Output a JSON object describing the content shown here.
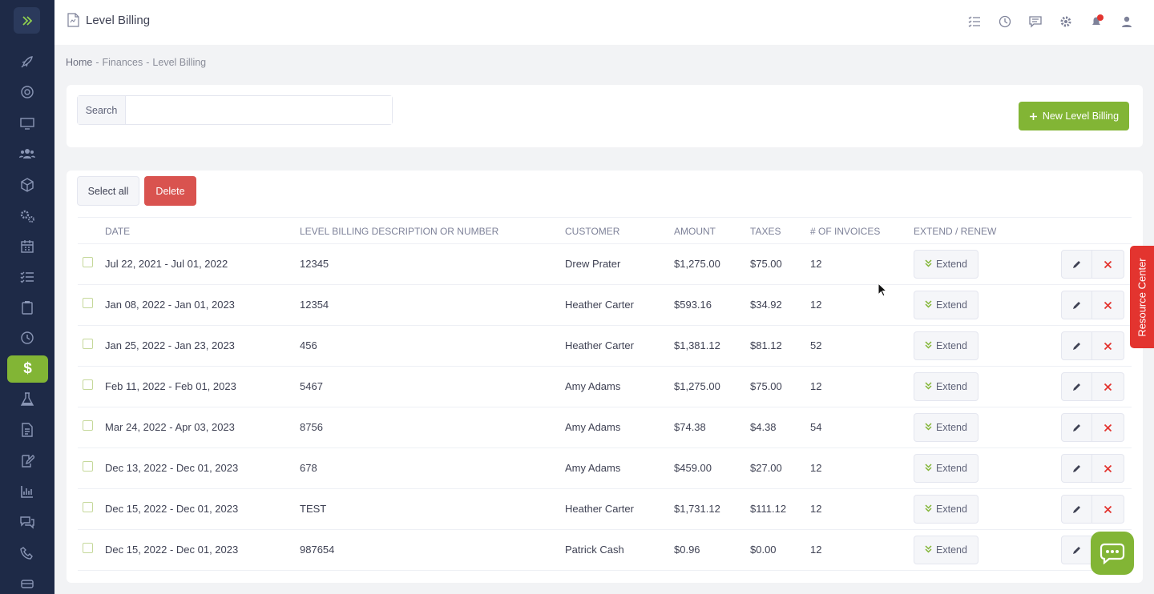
{
  "header": {
    "title": "Level Billing"
  },
  "breadcrumb": {
    "home": "Home",
    "sep1": "-",
    "finances": "Finances",
    "sep2": "-",
    "current": "Level Billing"
  },
  "search": {
    "label": "Search",
    "value": "",
    "placeholder": ""
  },
  "actions": {
    "new_button": "New Level Billing",
    "select_all": "Select all",
    "delete": "Delete"
  },
  "table": {
    "columns": [
      "DATE",
      "LEVEL BILLING DESCRIPTION OR NUMBER",
      "CUSTOMER",
      "AMOUNT",
      "TAXES",
      "# OF INVOICES",
      "EXTEND / RENEW"
    ],
    "extend_label": "Extend",
    "rows": [
      {
        "date": "Jul 22, 2021 - Jul 01, 2022",
        "description": "12345",
        "customer": "Drew Prater",
        "amount": "$1,275.00",
        "taxes": "$75.00",
        "invoices": "12"
      },
      {
        "date": "Jan 08, 2022 - Jan 01, 2023",
        "description": "12354",
        "customer": "Heather Carter",
        "amount": "$593.16",
        "taxes": "$34.92",
        "invoices": "12"
      },
      {
        "date": "Jan 25, 2022 - Jan 23, 2023",
        "description": "456",
        "customer": "Heather Carter",
        "amount": "$1,381.12",
        "taxes": "$81.12",
        "invoices": "52"
      },
      {
        "date": "Feb 11, 2022 - Feb 01, 2023",
        "description": "5467",
        "customer": "Amy Adams",
        "amount": "$1,275.00",
        "taxes": "$75.00",
        "invoices": "12"
      },
      {
        "date": "Mar 24, 2022 - Apr 03, 2023",
        "description": "8756",
        "customer": "Amy Adams",
        "amount": "$74.38",
        "taxes": "$4.38",
        "invoices": "54"
      },
      {
        "date": "Dec 13, 2022 - Dec 01, 2023",
        "description": "678",
        "customer": "Amy Adams",
        "amount": "$459.00",
        "taxes": "$27.00",
        "invoices": "12"
      },
      {
        "date": "Dec 15, 2022 - Dec 01, 2023",
        "description": "TEST",
        "customer": "Heather Carter",
        "amount": "$1,731.12",
        "taxes": "$111.12",
        "invoices": "12"
      },
      {
        "date": "Dec 15, 2022 - Dec 01, 2023",
        "description": "987654",
        "customer": "Patrick Cash",
        "amount": "$0.96",
        "taxes": "$0.00",
        "invoices": "12"
      }
    ]
  },
  "resource_center": {
    "label": "Resource Center"
  },
  "sidebar": {
    "icons": [
      "rocket-icon",
      "lifebuoy-icon",
      "monitor-icon",
      "users-icon",
      "cube-icon",
      "gears-icon",
      "calendar-icon",
      "checklist-icon",
      "clipboard-icon",
      "clock-icon",
      "dollar-icon",
      "flask-icon",
      "document-icon",
      "edit-document-icon",
      "bar-chart-icon",
      "chat-icon",
      "phone-icon",
      "vehicle-icon"
    ],
    "active": "dollar-icon",
    "active_symbol": "$"
  },
  "colors": {
    "sidebar_bg": "#1e2a47",
    "accent_green": "#82b535",
    "danger_red": "#d9534f"
  }
}
